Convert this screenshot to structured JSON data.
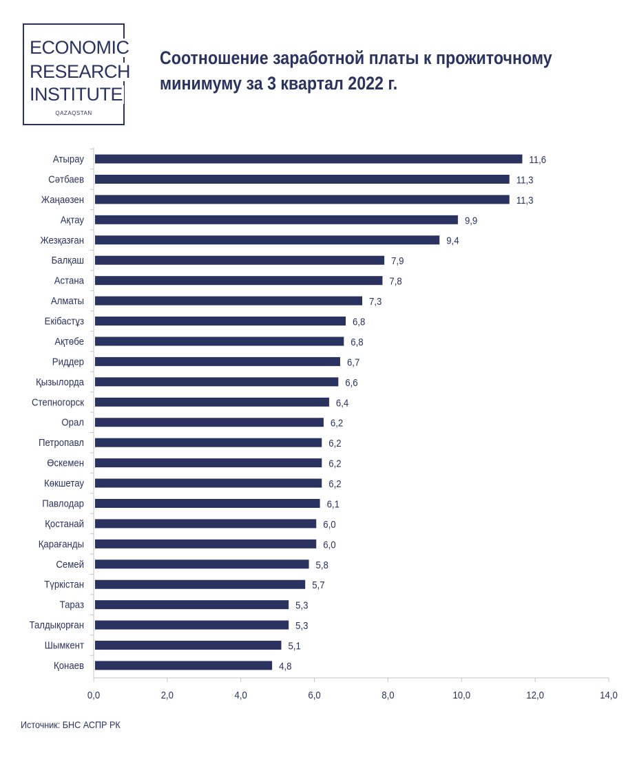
{
  "logo": {
    "line1": "ECONOMIC",
    "line2": "RESEARCH",
    "line3": "INSTITUTE",
    "sub": "QAZAQSTAN"
  },
  "source": "Источник: БНС АСПР РК",
  "colors": {
    "bar": "#2a3260",
    "text": "#2a3260",
    "axis": "#bfc3cc"
  },
  "chart_data": {
    "type": "bar",
    "orientation": "horizontal",
    "title": "Соотношение заработной платы к прожиточному минимуму за 3 квартал 2022 г.",
    "title_lines": [
      "Соотношение заработной платы к прожиточному",
      "минимуму за 3 квартал 2022 г."
    ],
    "categories": [
      "Атырау",
      "Сәтбаев",
      "Жаңаөзен",
      "Ақтау",
      "Жезқазған",
      "Балқаш",
      "Астана",
      "Алматы",
      "Екібастұз",
      "Ақтөбе",
      "Риддер",
      "Қызылорда",
      "Степногорск",
      "Орал",
      "Петропавл",
      "Өскемен",
      "Көкшетау",
      "Павлодар",
      "Қостанай",
      "Қарағанды",
      "Семей",
      "Түркістан",
      "Тараз",
      "Талдықорған",
      "Шымкент",
      "Қонаев"
    ],
    "values": [
      11.65,
      11.3,
      11.3,
      9.9,
      9.4,
      7.9,
      7.85,
      7.3,
      6.85,
      6.8,
      6.7,
      6.65,
      6.4,
      6.25,
      6.2,
      6.2,
      6.2,
      6.15,
      6.05,
      6.05,
      5.85,
      5.75,
      5.3,
      5.3,
      5.1,
      4.85
    ],
    "value_labels": [
      "11,6",
      "11,3",
      "11,3",
      "9,9",
      "9,4",
      "7,9",
      "7,8",
      "7,3",
      "6,8",
      "6,8",
      "6,7",
      "6,6",
      "6,4",
      "6,2",
      "6,2",
      "6,2",
      "6,2",
      "6,1",
      "6,0",
      "6,0",
      "5,8",
      "5,7",
      "5,3",
      "5,3",
      "5,1",
      "4,8"
    ],
    "xlim": [
      0,
      14
    ],
    "ticks": [
      0,
      2,
      4,
      6,
      8,
      10,
      12,
      14
    ],
    "tick_labels": [
      "0,0",
      "2,0",
      "4,0",
      "6,0",
      "8,0",
      "10,0",
      "12,0",
      "14,0"
    ],
    "grid": false,
    "legend": "none"
  }
}
